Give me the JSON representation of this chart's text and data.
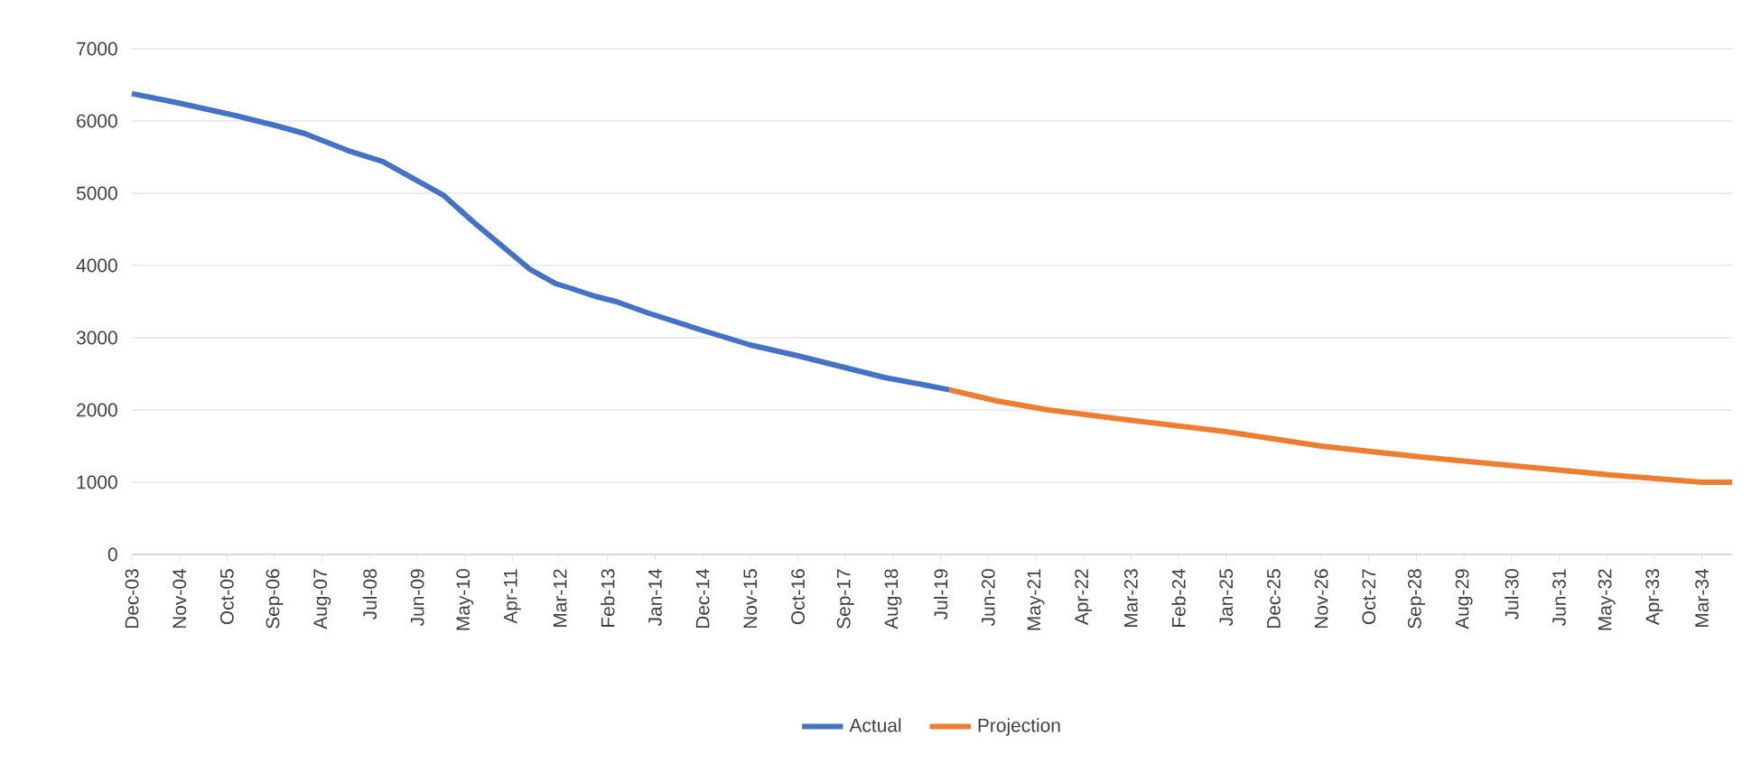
{
  "chart_data": {
    "type": "line",
    "ylim": [
      0,
      7000
    ],
    "yticks": [
      0,
      1000,
      2000,
      3000,
      4000,
      5000,
      6000,
      7000
    ],
    "xlim": [
      "2003-12",
      "2034-10"
    ],
    "xticks": [
      {
        "value": "2003-12",
        "label": "Dec-03"
      },
      {
        "value": "2004-11",
        "label": "Nov-04"
      },
      {
        "value": "2005-10",
        "label": "Oct-05"
      },
      {
        "value": "2006-09",
        "label": "Sep-06"
      },
      {
        "value": "2007-08",
        "label": "Aug-07"
      },
      {
        "value": "2008-07",
        "label": "Jul-08"
      },
      {
        "value": "2009-06",
        "label": "Jun-09"
      },
      {
        "value": "2010-05",
        "label": "May-10"
      },
      {
        "value": "2011-04",
        "label": "Apr-11"
      },
      {
        "value": "2012-03",
        "label": "Mar-12"
      },
      {
        "value": "2013-02",
        "label": "Feb-13"
      },
      {
        "value": "2014-01",
        "label": "Jan-14"
      },
      {
        "value": "2014-12",
        "label": "Dec-14"
      },
      {
        "value": "2015-11",
        "label": "Nov-15"
      },
      {
        "value": "2016-10",
        "label": "Oct-16"
      },
      {
        "value": "2017-09",
        "label": "Sep-17"
      },
      {
        "value": "2018-08",
        "label": "Aug-18"
      },
      {
        "value": "2019-07",
        "label": "Jul-19"
      },
      {
        "value": "2020-06",
        "label": "Jun-20"
      },
      {
        "value": "2021-05",
        "label": "May-21"
      },
      {
        "value": "2022-04",
        "label": "Apr-22"
      },
      {
        "value": "2023-03",
        "label": "Mar-23"
      },
      {
        "value": "2024-02",
        "label": "Feb-24"
      },
      {
        "value": "2025-01",
        "label": "Jan-25"
      },
      {
        "value": "2025-12",
        "label": "Dec-25"
      },
      {
        "value": "2026-11",
        "label": "Nov-26"
      },
      {
        "value": "2027-10",
        "label": "Oct-27"
      },
      {
        "value": "2028-09",
        "label": "Sep-28"
      },
      {
        "value": "2029-08",
        "label": "Aug-29"
      },
      {
        "value": "2030-07",
        "label": "Jul-30"
      },
      {
        "value": "2031-06",
        "label": "Jun-31"
      },
      {
        "value": "2032-05",
        "label": "May-32"
      },
      {
        "value": "2033-04",
        "label": "Apr-33"
      },
      {
        "value": "2034-03",
        "label": "Mar-34"
      }
    ],
    "series": [
      {
        "name": "Actual",
        "color": "#4472c4",
        "x": [
          "2003-12",
          "2004-10",
          "2005-12",
          "2006-10",
          "2007-04",
          "2008-02",
          "2008-10",
          "2009-06",
          "2009-12",
          "2010-07",
          "2011-02",
          "2011-08",
          "2012-02",
          "2012-06",
          "2012-11",
          "2013-04",
          "2013-11",
          "2014-12",
          "2015-11",
          "2016-10",
          "2017-08",
          "2018-06",
          "2019-03",
          "2019-09"
        ],
        "values": [
          6380,
          6260,
          6075,
          5925,
          5825,
          5590,
          5440,
          5175,
          4975,
          4600,
          4250,
          3950,
          3750,
          3675,
          3575,
          3500,
          3350,
          3100,
          2900,
          2750,
          2600,
          2450,
          2350,
          2280
        ]
      },
      {
        "name": "Projection",
        "color": "#ed7d31",
        "x": [
          "2019-09",
          "2020-08",
          "2021-08",
          "2023-04",
          "2025-01",
          "2026-11",
          "2028-10",
          "2030-08",
          "2032-06",
          "2034-03",
          "2034-10"
        ],
        "values": [
          2280,
          2125,
          2000,
          1850,
          1700,
          1500,
          1350,
          1225,
          1100,
          1000,
          1000
        ]
      }
    ],
    "grid": "y",
    "legend": "bottom",
    "marker": "none",
    "line_style": "solid"
  }
}
